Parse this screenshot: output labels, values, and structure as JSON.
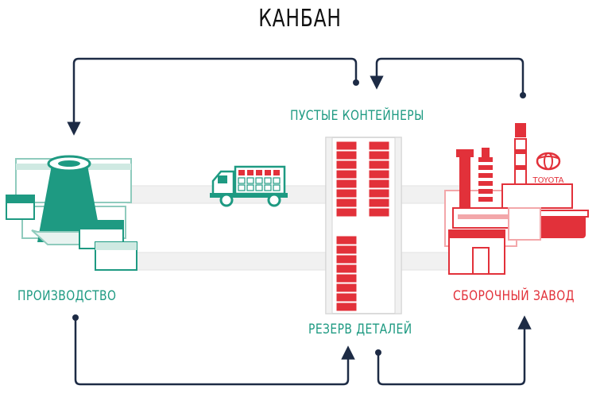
{
  "title": "КАНБАН",
  "labels": {
    "production": "ПРОИЗВОДСТВО",
    "empty_containers": "ПУСТЫЕ КОНТЕЙНЕРЫ",
    "parts_reserve": "РЕЗЕРВ ДЕТАЛЕЙ",
    "assembly_plant": "СБОРОЧНЫЙ ЗАВОД",
    "brand": "TOYOTA"
  },
  "colors": {
    "green": "#1e9a82",
    "red": "#e2313a",
    "arrow": "#1d2b45"
  }
}
